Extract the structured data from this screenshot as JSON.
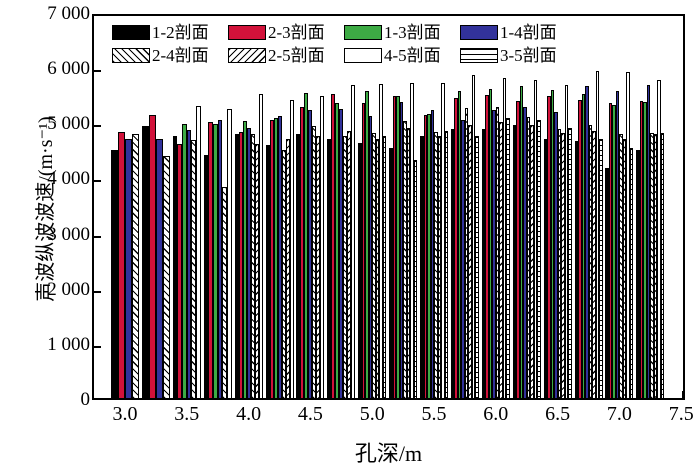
{
  "figure": {
    "y_axis_title": "声波纵波波速/(m·s⁻¹)",
    "x_axis_title": "孔深/m",
    "y_tick_labels": [
      "0",
      "1 000",
      "2 000",
      "3 000",
      "4 000",
      "5 000",
      "6 000",
      "7 000"
    ],
    "y_tick_values": [
      0,
      1000,
      2000,
      3000,
      4000,
      5000,
      6000,
      7000
    ],
    "x_tick_labels": [
      "3.0",
      "3.5",
      "4.0",
      "4.5",
      "5.0",
      "5.5",
      "6.0",
      "6.5",
      "7.0",
      "7.5"
    ],
    "x_tick_values": [
      3.0,
      3.5,
      4.0,
      4.5,
      5.0,
      5.5,
      6.0,
      6.5,
      7.0,
      7.5
    ]
  },
  "legend": {
    "rows": [
      [
        {
          "label": "1-2剖面",
          "fill": "black"
        },
        {
          "label": "2-3剖面",
          "fill": "red"
        },
        {
          "label": "1-3剖面",
          "fill": "green"
        },
        {
          "label": "1-4剖面",
          "fill": "navy"
        }
      ],
      [
        {
          "label": "2-4剖面",
          "fill": "hback"
        },
        {
          "label": "2-5剖面",
          "fill": "hfwd"
        },
        {
          "label": "4-5剖面",
          "fill": "hcross"
        },
        {
          "label": "3-5剖面",
          "fill": "hhorz"
        }
      ]
    ]
  },
  "chart_data": {
    "type": "bar",
    "title": "",
    "xlabel": "孔深/m",
    "ylabel": "声波纵波波速/(m·s⁻¹)",
    "xlim": [
      2.6,
      7.58
    ],
    "ylim": [
      0,
      7000
    ],
    "grid": false,
    "legend_position": "top-inside",
    "categories": [
      3.0,
      3.25,
      3.5,
      3.75,
      4.0,
      4.25,
      4.5,
      4.75,
      5.0,
      5.25,
      5.5,
      5.75,
      6.0,
      6.25,
      6.5,
      6.75,
      7.0,
      7.25
    ],
    "series": [
      {
        "name": "1-2剖面",
        "fill": "black",
        "color": "#000000",
        "pattern": "solid",
        "values": [
          4500,
          4940,
          4760,
          4400,
          4780,
          4590,
          4780,
          4700,
          4620,
          4530,
          4750,
          4880,
          4880,
          4960,
          4700,
          4660,
          4170,
          4500
        ]
      },
      {
        "name": "2-3剖面",
        "fill": "red",
        "color": "#d2123a",
        "pattern": "solid",
        "values": [
          4820,
          5140,
          4610,
          5000,
          4820,
          5050,
          5280,
          5520,
          5350,
          5470,
          5140,
          5440,
          5490,
          5380,
          5470,
          5410,
          5350,
          5390
        ]
      },
      {
        "name": "1-3剖面",
        "fill": "green",
        "color": "#3dab44",
        "pattern": "solid",
        "values": [
          null,
          null,
          4970,
          4970,
          5020,
          5080,
          5530,
          5350,
          5560,
          5480,
          5150,
          5560,
          5600,
          5650,
          5590,
          5520,
          5320,
          5370
        ]
      },
      {
        "name": "1-4剖面",
        "fill": "navy",
        "color": "#32329b",
        "pattern": "solid",
        "values": [
          4700,
          4700,
          4860,
          5050,
          4900,
          5120,
          5220,
          5240,
          5120,
          5360,
          5230,
          5050,
          5230,
          5280,
          5180,
          5650,
          5560,
          5680
        ]
      },
      {
        "name": "2-4剖面",
        "fill": "hback",
        "color": "#000000",
        "pattern": "backslash-hatch",
        "values": [
          4780,
          4380,
          4670,
          3820,
          4780,
          4500,
          4940,
          4750,
          4800,
          5020,
          4820,
          5260,
          5280,
          5100,
          4870,
          4960,
          4790,
          4810
        ]
      },
      {
        "name": "2-5剖面",
        "fill": "hfwd",
        "color": "#000000",
        "pattern": "forward-slash-hatch",
        "values": [
          null,
          null,
          null,
          null,
          4600,
          4700,
          4750,
          4850,
          4700,
          4900,
          4750,
          4950,
          5000,
          4950,
          4800,
          4850,
          4700,
          4780
        ]
      },
      {
        "name": "4-5剖面",
        "fill": "hcross",
        "color": "#000000",
        "pattern": "cross-hatch",
        "values": [
          null,
          null,
          5290,
          5250,
          5510,
          5410,
          5470,
          5680,
          5700,
          5720,
          5720,
          5850,
          5800,
          5760,
          5680,
          5925,
          5905,
          5770
        ]
      },
      {
        "name": "3-5剖面",
        "fill": "hhorz",
        "color": "#000000",
        "pattern": "horizontal-lines",
        "values": [
          null,
          null,
          null,
          null,
          null,
          null,
          null,
          null,
          4750,
          4320,
          4840,
          4750,
          5080,
          5050,
          4900,
          4700,
          4530,
          4800
        ]
      }
    ]
  }
}
